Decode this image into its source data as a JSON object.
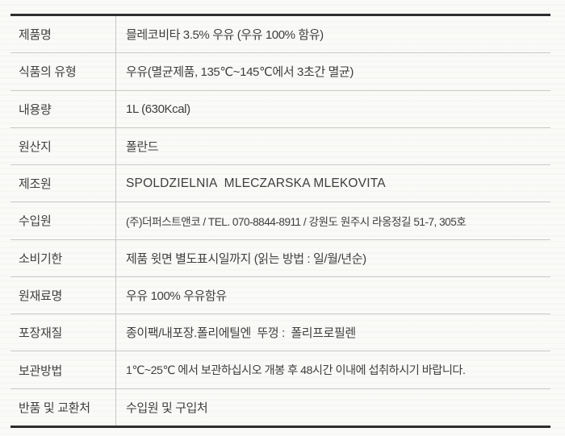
{
  "product_info_table": {
    "rows": [
      {
        "label": "제품명",
        "value": "믈레코비타 3.5% 우유 (우유 100% 함유)"
      },
      {
        "label": "식품의 유형",
        "value": "우유(멸균제품, 135℃~145℃에서 3초간 멸균)"
      },
      {
        "label": "내용량",
        "value": "1L (630Kcal)"
      },
      {
        "label": "원산지",
        "value": "폴란드"
      },
      {
        "label": "제조원",
        "value": "SPOLDZIELNIA  MLECZARSKA MLEKOVITA"
      },
      {
        "label": "수입원",
        "value": "(주)더퍼스트앤코 / TEL. 070-8844-8911 / 강원도 원주시 라옹정길 51-7, 305호"
      },
      {
        "label": "소비기한",
        "value": "제품 윗면 별도표시일까지 (읽는 방법 : 일/월/년순)"
      },
      {
        "label": "원재료명",
        "value": "우유 100% 우유함유"
      },
      {
        "label": "포장재질",
        "value": "종이팩/내포장.폴리에틸엔  뚜껑 :  폴리프로필렌"
      },
      {
        "label": "보관방법",
        "value": "1℃~25℃ 에서 보관하십시오 개봉 후 48시간 이내에 섭취하시기 바랍니다."
      },
      {
        "label": "반품 및 교환처",
        "value": "수입원 및 구입처"
      }
    ],
    "colors": {
      "text": "#3f3f3f",
      "heavy_border": "#2e2e2e",
      "row_divider": "#c9c9c7",
      "background": "#fafaf8"
    }
  }
}
